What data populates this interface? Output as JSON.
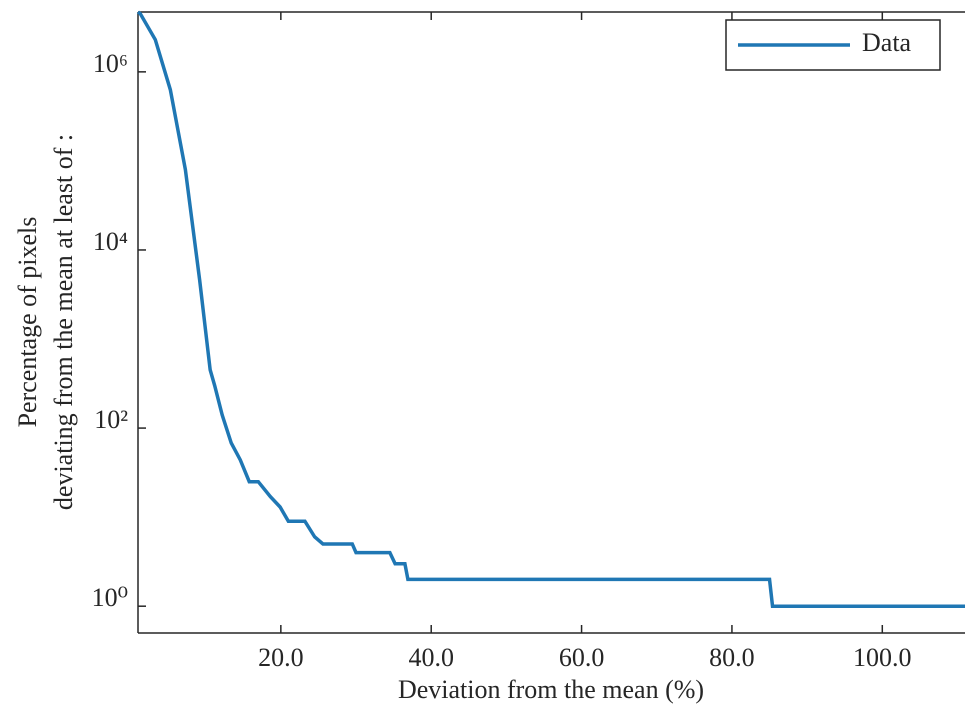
{
  "chart_data": {
    "type": "line",
    "x_label": "Deviation from the mean (%)",
    "y_label": [
      "Percentage of pixels",
      "deviating from the mean at least of :"
    ],
    "log_y": true,
    "legend_position": "upper right",
    "xlim": [
      1,
      111
    ],
    "ylim": [
      0.5,
      4700000
    ],
    "xticks": [
      {
        "value": 20,
        "label": "20.0"
      },
      {
        "value": 40,
        "label": "40.0"
      },
      {
        "value": 60,
        "label": "60.0"
      },
      {
        "value": 80,
        "label": "80.0"
      },
      {
        "value": 100,
        "label": "100.0"
      }
    ],
    "yticks": [
      {
        "value": 1,
        "label": "10⁰"
      },
      {
        "value": 100,
        "label": "10²"
      },
      {
        "value": 10000,
        "label": "10⁴"
      },
      {
        "value": 1000000,
        "label": "10⁶"
      }
    ],
    "x": [
      1.0,
      1.3,
      3.3,
      5.3,
      7.3,
      9.2,
      10.6,
      11.2,
      12.2,
      13.4,
      14.6,
      15.8,
      17.0,
      18.6,
      19.9,
      21.0,
      23.2,
      24.5,
      25.6,
      29.5,
      30.0,
      34.5,
      35.2,
      36.5,
      36.9,
      85.0,
      85.4,
      111
    ],
    "series": [
      {
        "name": "Data",
        "color": "#1f77b4",
        "values": [
          4700000,
          4500000,
          2300000,
          630000,
          80000,
          4600,
          450,
          300,
          140,
          68,
          44,
          25,
          25,
          17,
          13,
          9,
          9,
          6,
          5,
          5,
          4,
          4,
          3,
          3,
          2,
          2,
          1,
          1
        ]
      }
    ]
  }
}
